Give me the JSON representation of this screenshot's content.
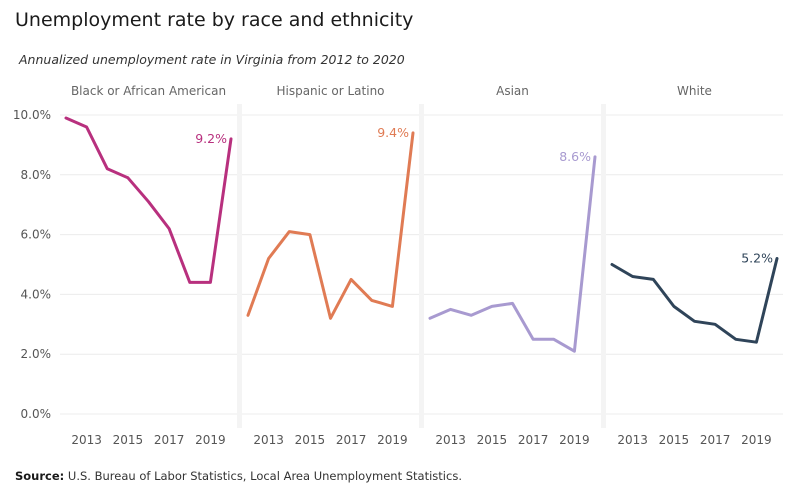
{
  "title": "Unemployment rate by race and ethnicity",
  "subtitle": "Annualized unemployment rate in Virginia from 2012 to 2020",
  "source": {
    "label": "Source:",
    "text": "U.S. Bureau of Labor Statistics, Local Area Unemployment Statistics."
  },
  "chart_data": {
    "type": "line",
    "layout": "small-multiples",
    "grid": true,
    "ylim": [
      0,
      10
    ],
    "xlim": [
      2012,
      2020
    ],
    "yticks": [
      0,
      2,
      4,
      6,
      8,
      10
    ],
    "ytick_labels": [
      "0.0%",
      "2.0%",
      "4.0%",
      "6.0%",
      "8.0%",
      "10.0%"
    ],
    "xticks": [
      2013,
      2015,
      2017,
      2019
    ],
    "xtick_labels": [
      "2013",
      "2015",
      "2017",
      "2019"
    ],
    "x": [
      2012,
      2013,
      2014,
      2015,
      2016,
      2017,
      2018,
      2019,
      2020
    ],
    "series": [
      {
        "name": "Black or African American",
        "color": "#b8307e",
        "values": [
          9.9,
          9.6,
          8.2,
          7.9,
          7.1,
          6.2,
          4.4,
          4.4,
          9.2
        ],
        "end_label": "9.2%"
      },
      {
        "name": "Hispanic or Latino",
        "color": "#e07b54",
        "values": [
          3.3,
          5.2,
          6.1,
          6.0,
          3.2,
          4.5,
          3.8,
          3.6,
          9.4
        ],
        "end_label": "9.4%"
      },
      {
        "name": "Asian",
        "color": "#a89ad0",
        "values": [
          3.2,
          3.5,
          3.3,
          3.6,
          3.7,
          2.5,
          2.5,
          2.1,
          8.6
        ],
        "end_label": "8.6%"
      },
      {
        "name": "White",
        "color": "#2f4459",
        "values": [
          5.0,
          4.6,
          4.5,
          3.6,
          3.1,
          3.0,
          2.5,
          2.4,
          5.2
        ],
        "end_label": "5.2%"
      }
    ]
  }
}
